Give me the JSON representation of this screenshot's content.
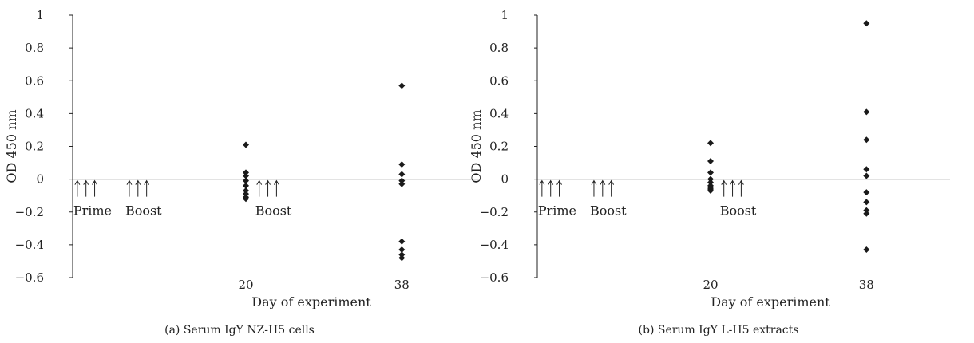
{
  "chart_data": [
    {
      "type": "scatter",
      "caption": "(a) Serum IgY NZ-H5 cells",
      "xlabel": "Day of experiment",
      "ylabel": "OD 450 nm",
      "ylim": [
        -0.6,
        1
      ],
      "yticks": [
        "1",
        "0.8",
        "0.6",
        "0.4",
        "0.2",
        "0",
        "−0.2",
        "−0.4",
        "−0.6"
      ],
      "xticks": [
        {
          "x": 20,
          "label": "20"
        },
        {
          "x": 38,
          "label": "38"
        }
      ],
      "xlim": [
        0,
        56
      ],
      "grid": false,
      "marker_color": "#1a1a1a",
      "annotations": [
        {
          "label": "Prime",
          "arrows_x": [
            1,
            2,
            3
          ]
        },
        {
          "label": "Boost",
          "arrows_x": [
            7,
            8,
            9
          ]
        },
        {
          "label": "Boost",
          "arrows_x": [
            22,
            23,
            24
          ]
        }
      ],
      "points": [
        {
          "x": 20,
          "y": 0.21
        },
        {
          "x": 20,
          "y": 0.04
        },
        {
          "x": 20,
          "y": 0.02
        },
        {
          "x": 20,
          "y": -0.01
        },
        {
          "x": 20,
          "y": -0.04
        },
        {
          "x": 20,
          "y": -0.07
        },
        {
          "x": 20,
          "y": -0.09
        },
        {
          "x": 20,
          "y": -0.11
        },
        {
          "x": 20,
          "y": -0.12
        },
        {
          "x": 38,
          "y": 0.57
        },
        {
          "x": 38,
          "y": 0.09
        },
        {
          "x": 38,
          "y": 0.03
        },
        {
          "x": 38,
          "y": -0.01
        },
        {
          "x": 38,
          "y": -0.03
        },
        {
          "x": 38,
          "y": -0.38
        },
        {
          "x": 38,
          "y": -0.43
        },
        {
          "x": 38,
          "y": -0.46
        },
        {
          "x": 38,
          "y": -0.48
        }
      ]
    },
    {
      "type": "scatter",
      "caption": "(b) Serum IgY L-H5 extracts",
      "xlabel": "Day of experiment",
      "ylabel": "OD 450 nm",
      "ylim": [
        -0.6,
        1
      ],
      "yticks": [
        "1",
        "0.8",
        "0.6",
        "0.4",
        "0.2",
        "0",
        "−0.2",
        "−0.4",
        "−0.6"
      ],
      "xticks": [
        {
          "x": 20,
          "label": "20"
        },
        {
          "x": 38,
          "label": "38"
        }
      ],
      "xlim": [
        0,
        56
      ],
      "grid": false,
      "marker_color": "#1a1a1a",
      "annotations": [
        {
          "label": "Prime",
          "arrows_x": [
            1,
            2,
            3
          ]
        },
        {
          "label": "Boost",
          "arrows_x": [
            7,
            8,
            9
          ]
        },
        {
          "label": "Boost",
          "arrows_x": [
            22,
            23,
            24
          ]
        }
      ],
      "points": [
        {
          "x": 20,
          "y": 0.22
        },
        {
          "x": 20,
          "y": 0.11
        },
        {
          "x": 20,
          "y": 0.04
        },
        {
          "x": 20,
          "y": 0.0
        },
        {
          "x": 20,
          "y": -0.02
        },
        {
          "x": 20,
          "y": -0.04
        },
        {
          "x": 20,
          "y": -0.05
        },
        {
          "x": 20,
          "y": -0.06
        },
        {
          "x": 20,
          "y": -0.07
        },
        {
          "x": 38,
          "y": 0.95
        },
        {
          "x": 38,
          "y": 0.41
        },
        {
          "x": 38,
          "y": 0.24
        },
        {
          "x": 38,
          "y": 0.06
        },
        {
          "x": 38,
          "y": 0.02
        },
        {
          "x": 38,
          "y": -0.08
        },
        {
          "x": 38,
          "y": -0.14
        },
        {
          "x": 38,
          "y": -0.19
        },
        {
          "x": 38,
          "y": -0.21
        },
        {
          "x": 38,
          "y": -0.43
        }
      ]
    }
  ]
}
